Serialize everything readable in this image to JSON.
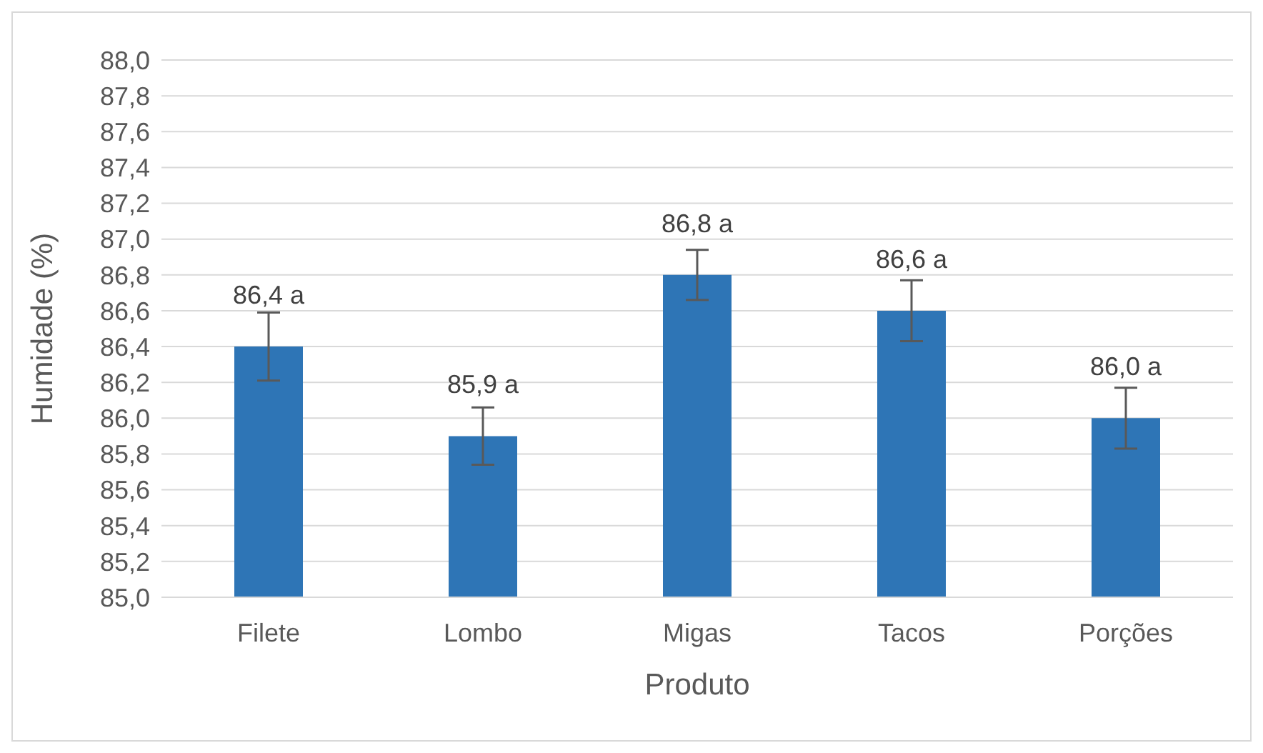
{
  "chart_data": {
    "type": "bar",
    "xlabel": "Produto",
    "ylabel": "Humidade (%)",
    "categories": [
      "Filete",
      "Lombo",
      "Migas",
      "Tacos",
      "Porções"
    ],
    "values": [
      86.4,
      85.9,
      86.8,
      86.6,
      86.0
    ],
    "errors": [
      0.19,
      0.16,
      0.14,
      0.17,
      0.17
    ],
    "value_labels": [
      "86,4 a",
      "85,9 a",
      "86,8 a",
      "86,6 a",
      "86,0 a"
    ],
    "color": "#2e75b6",
    "ylim": [
      85,
      88
    ],
    "yticks": [
      {
        "value": 85,
        "label": "85,0"
      },
      {
        "value": 85.2,
        "label": "85,2"
      },
      {
        "value": 85.4,
        "label": "85,4"
      },
      {
        "value": 85.6,
        "label": "85,6"
      },
      {
        "value": 85.8,
        "label": "85,8"
      },
      {
        "value": 86,
        "label": "86,0"
      },
      {
        "value": 86.2,
        "label": "86,2"
      },
      {
        "value": 86.4,
        "label": "86,4"
      },
      {
        "value": 86.6,
        "label": "86,6"
      },
      {
        "value": 86.8,
        "label": "86,8"
      },
      {
        "value": 87,
        "label": "87,0"
      },
      {
        "value": 87.2,
        "label": "87,2"
      },
      {
        "value": 87.4,
        "label": "87,4"
      },
      {
        "value": 87.6,
        "label": "87,6"
      },
      {
        "value": 87.8,
        "label": "87,8"
      },
      {
        "value": 88,
        "label": "88,0"
      }
    ],
    "grid": "y",
    "legend": false
  }
}
